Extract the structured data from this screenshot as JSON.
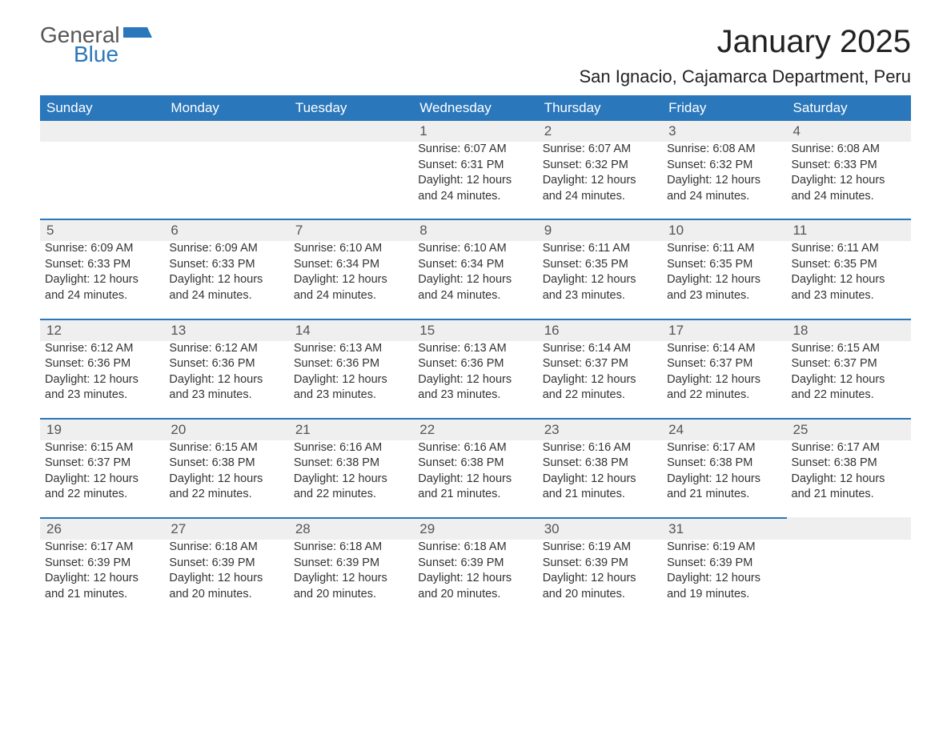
{
  "brand": {
    "general": "General",
    "blue": "Blue",
    "shape_color": "#2a77bb"
  },
  "title": "January 2025",
  "location": "San Ignacio, Cajamarca Department, Peru",
  "colors": {
    "header_bg": "#2a77bb",
    "header_text": "#ffffff",
    "daynum_bg": "#efefef",
    "daynum_border": "#2a77bb",
    "body_text": "#333333",
    "background": "#ffffff"
  },
  "typography": {
    "title_fontsize": 40,
    "location_fontsize": 22,
    "header_fontsize": 17,
    "cell_fontsize": 14.5
  },
  "day_headers": [
    "Sunday",
    "Monday",
    "Tuesday",
    "Wednesday",
    "Thursday",
    "Friday",
    "Saturday"
  ],
  "weeks": [
    [
      null,
      null,
      null,
      {
        "n": "1",
        "sunrise": "Sunrise: 6:07 AM",
        "sunset": "Sunset: 6:31 PM",
        "daylight": "Daylight: 12 hours and 24 minutes."
      },
      {
        "n": "2",
        "sunrise": "Sunrise: 6:07 AM",
        "sunset": "Sunset: 6:32 PM",
        "daylight": "Daylight: 12 hours and 24 minutes."
      },
      {
        "n": "3",
        "sunrise": "Sunrise: 6:08 AM",
        "sunset": "Sunset: 6:32 PM",
        "daylight": "Daylight: 12 hours and 24 minutes."
      },
      {
        "n": "4",
        "sunrise": "Sunrise: 6:08 AM",
        "sunset": "Sunset: 6:33 PM",
        "daylight": "Daylight: 12 hours and 24 minutes."
      }
    ],
    [
      {
        "n": "5",
        "sunrise": "Sunrise: 6:09 AM",
        "sunset": "Sunset: 6:33 PM",
        "daylight": "Daylight: 12 hours and 24 minutes."
      },
      {
        "n": "6",
        "sunrise": "Sunrise: 6:09 AM",
        "sunset": "Sunset: 6:33 PM",
        "daylight": "Daylight: 12 hours and 24 minutes."
      },
      {
        "n": "7",
        "sunrise": "Sunrise: 6:10 AM",
        "sunset": "Sunset: 6:34 PM",
        "daylight": "Daylight: 12 hours and 24 minutes."
      },
      {
        "n": "8",
        "sunrise": "Sunrise: 6:10 AM",
        "sunset": "Sunset: 6:34 PM",
        "daylight": "Daylight: 12 hours and 24 minutes."
      },
      {
        "n": "9",
        "sunrise": "Sunrise: 6:11 AM",
        "sunset": "Sunset: 6:35 PM",
        "daylight": "Daylight: 12 hours and 23 minutes."
      },
      {
        "n": "10",
        "sunrise": "Sunrise: 6:11 AM",
        "sunset": "Sunset: 6:35 PM",
        "daylight": "Daylight: 12 hours and 23 minutes."
      },
      {
        "n": "11",
        "sunrise": "Sunrise: 6:11 AM",
        "sunset": "Sunset: 6:35 PM",
        "daylight": "Daylight: 12 hours and 23 minutes."
      }
    ],
    [
      {
        "n": "12",
        "sunrise": "Sunrise: 6:12 AM",
        "sunset": "Sunset: 6:36 PM",
        "daylight": "Daylight: 12 hours and 23 minutes."
      },
      {
        "n": "13",
        "sunrise": "Sunrise: 6:12 AM",
        "sunset": "Sunset: 6:36 PM",
        "daylight": "Daylight: 12 hours and 23 minutes."
      },
      {
        "n": "14",
        "sunrise": "Sunrise: 6:13 AM",
        "sunset": "Sunset: 6:36 PM",
        "daylight": "Daylight: 12 hours and 23 minutes."
      },
      {
        "n": "15",
        "sunrise": "Sunrise: 6:13 AM",
        "sunset": "Sunset: 6:36 PM",
        "daylight": "Daylight: 12 hours and 23 minutes."
      },
      {
        "n": "16",
        "sunrise": "Sunrise: 6:14 AM",
        "sunset": "Sunset: 6:37 PM",
        "daylight": "Daylight: 12 hours and 22 minutes."
      },
      {
        "n": "17",
        "sunrise": "Sunrise: 6:14 AM",
        "sunset": "Sunset: 6:37 PM",
        "daylight": "Daylight: 12 hours and 22 minutes."
      },
      {
        "n": "18",
        "sunrise": "Sunrise: 6:15 AM",
        "sunset": "Sunset: 6:37 PM",
        "daylight": "Daylight: 12 hours and 22 minutes."
      }
    ],
    [
      {
        "n": "19",
        "sunrise": "Sunrise: 6:15 AM",
        "sunset": "Sunset: 6:37 PM",
        "daylight": "Daylight: 12 hours and 22 minutes."
      },
      {
        "n": "20",
        "sunrise": "Sunrise: 6:15 AM",
        "sunset": "Sunset: 6:38 PM",
        "daylight": "Daylight: 12 hours and 22 minutes."
      },
      {
        "n": "21",
        "sunrise": "Sunrise: 6:16 AM",
        "sunset": "Sunset: 6:38 PM",
        "daylight": "Daylight: 12 hours and 22 minutes."
      },
      {
        "n": "22",
        "sunrise": "Sunrise: 6:16 AM",
        "sunset": "Sunset: 6:38 PM",
        "daylight": "Daylight: 12 hours and 21 minutes."
      },
      {
        "n": "23",
        "sunrise": "Sunrise: 6:16 AM",
        "sunset": "Sunset: 6:38 PM",
        "daylight": "Daylight: 12 hours and 21 minutes."
      },
      {
        "n": "24",
        "sunrise": "Sunrise: 6:17 AM",
        "sunset": "Sunset: 6:38 PM",
        "daylight": "Daylight: 12 hours and 21 minutes."
      },
      {
        "n": "25",
        "sunrise": "Sunrise: 6:17 AM",
        "sunset": "Sunset: 6:38 PM",
        "daylight": "Daylight: 12 hours and 21 minutes."
      }
    ],
    [
      {
        "n": "26",
        "sunrise": "Sunrise: 6:17 AM",
        "sunset": "Sunset: 6:39 PM",
        "daylight": "Daylight: 12 hours and 21 minutes."
      },
      {
        "n": "27",
        "sunrise": "Sunrise: 6:18 AM",
        "sunset": "Sunset: 6:39 PM",
        "daylight": "Daylight: 12 hours and 20 minutes."
      },
      {
        "n": "28",
        "sunrise": "Sunrise: 6:18 AM",
        "sunset": "Sunset: 6:39 PM",
        "daylight": "Daylight: 12 hours and 20 minutes."
      },
      {
        "n": "29",
        "sunrise": "Sunrise: 6:18 AM",
        "sunset": "Sunset: 6:39 PM",
        "daylight": "Daylight: 12 hours and 20 minutes."
      },
      {
        "n": "30",
        "sunrise": "Sunrise: 6:19 AM",
        "sunset": "Sunset: 6:39 PM",
        "daylight": "Daylight: 12 hours and 20 minutes."
      },
      {
        "n": "31",
        "sunrise": "Sunrise: 6:19 AM",
        "sunset": "Sunset: 6:39 PM",
        "daylight": "Daylight: 12 hours and 19 minutes."
      },
      null
    ]
  ]
}
